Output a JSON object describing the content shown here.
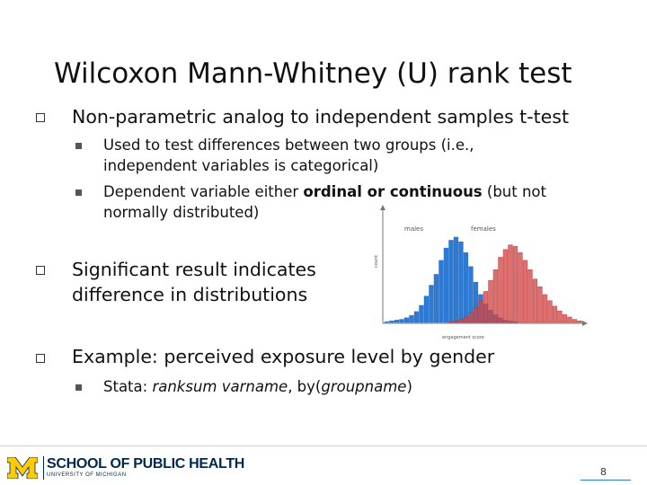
{
  "slide": {
    "title": "Wilcoxon Mann-Whitney (U) rank test",
    "bullets": [
      {
        "text": "Non-parametric analog to independent samples t-test",
        "sub": [
          {
            "lines": [
              "Used to test differences between two groups (i.e.,",
              "independent variables is categorical)"
            ]
          },
          {
            "line1_pre": "Dependent variable either ",
            "line1_bold": "ordinal or continuous",
            "line1_post": " (but not",
            "line2": "normally distributed)"
          }
        ]
      },
      {
        "lines": [
          "Significant result indicates",
          "difference in distributions"
        ]
      },
      {
        "text": "Example: perceived exposure level by gender",
        "sub": [
          {
            "pre": "Stata: ",
            "ital": "ranksum varname",
            "mid": ", by(",
            "ital2": "groupname",
            "post": ")"
          }
        ]
      }
    ]
  },
  "chart_data": {
    "type": "bar",
    "legend": [
      "males",
      "females"
    ],
    "xlabel": "engagement score",
    "ylabel": "count",
    "colors": {
      "males": "#2e7bd6",
      "females": "#d64545",
      "overlap": "#8a2c3c"
    },
    "series": [
      {
        "name": "males",
        "values": [
          1,
          2,
          3,
          4,
          6,
          9,
          14,
          22,
          34,
          48,
          62,
          80,
          96,
          106,
          110,
          104,
          90,
          72,
          52,
          36,
          24,
          16,
          10,
          6,
          3,
          2,
          1,
          0,
          0,
          0,
          0,
          0,
          0,
          0,
          0,
          0,
          0,
          0,
          0,
          0
        ]
      },
      {
        "name": "females",
        "values": [
          0,
          0,
          0,
          0,
          0,
          0,
          0,
          0,
          0,
          0,
          0,
          0,
          0,
          1,
          2,
          4,
          7,
          12,
          19,
          28,
          40,
          54,
          68,
          84,
          94,
          100,
          98,
          90,
          80,
          68,
          56,
          46,
          36,
          28,
          21,
          15,
          10,
          7,
          4,
          2
        ]
      }
    ]
  },
  "footer": {
    "school": "SCHOOL OF PUBLIC HEALTH",
    "university": "UNIVERSITY OF MICHIGAN",
    "page_number": "8"
  }
}
